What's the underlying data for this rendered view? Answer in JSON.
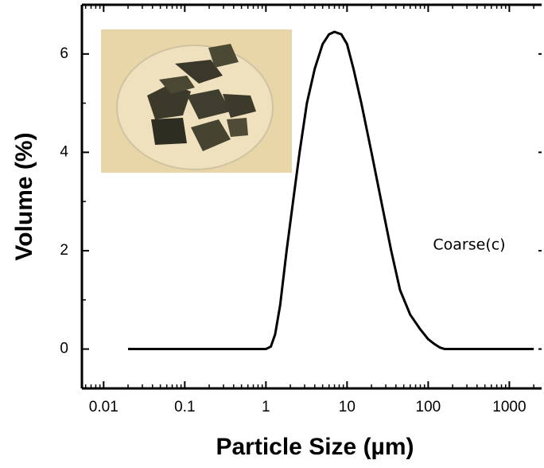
{
  "chart_data": {
    "type": "line",
    "xlabel": "Particle Size (µm)",
    "ylabel": "Volume (%)",
    "annotation": "Coarse(c)",
    "x": [
      0.02,
      0.1,
      0.5,
      1,
      1.15,
      1.3,
      1.5,
      1.8,
      2.2,
      2.6,
      3.2,
      4,
      5,
      6,
      7,
      8.5,
      10,
      12,
      15,
      20,
      25,
      35,
      45,
      60,
      80,
      100,
      120,
      140,
      160,
      500,
      2000
    ],
    "series": [
      {
        "color": "#000000",
        "values": [
          0,
          0,
          0,
          0,
          0.05,
          0.3,
          0.9,
          2.0,
          3.1,
          4.0,
          5.0,
          5.7,
          6.2,
          6.4,
          6.45,
          6.4,
          6.2,
          5.7,
          5.0,
          4.0,
          3.2,
          2.0,
          1.2,
          0.7,
          0.4,
          0.2,
          0.1,
          0.03,
          0,
          0,
          0
        ]
      }
    ],
    "xscale": "log",
    "xlim": [
      0.0054,
      2500
    ],
    "xticks": [
      0.01,
      0.1,
      1,
      10,
      100,
      1000
    ],
    "ylim": [
      -0.8,
      7
    ],
    "yticks": [
      0,
      2,
      4,
      6
    ]
  }
}
